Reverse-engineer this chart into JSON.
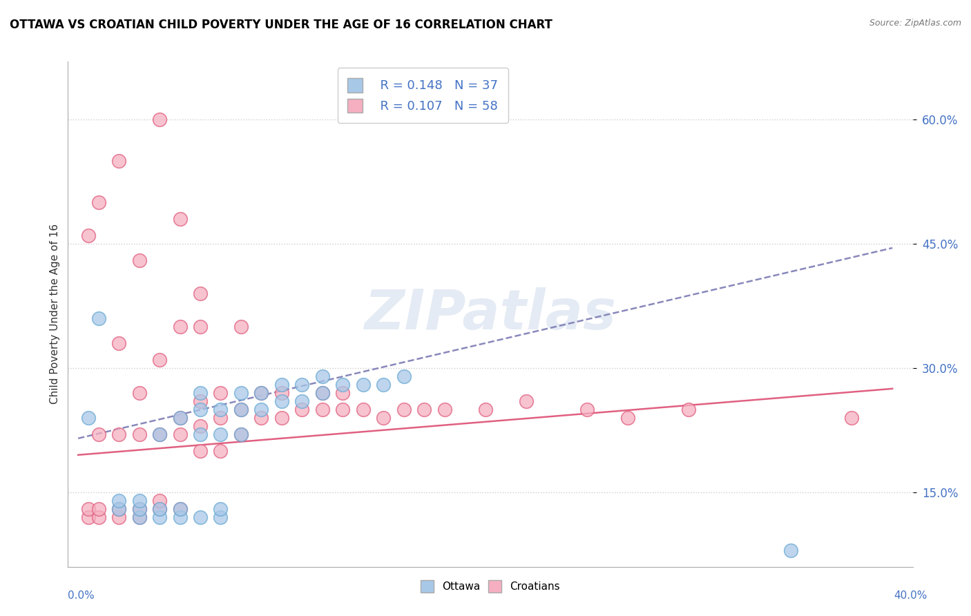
{
  "title": "OTTAWA VS CROATIAN CHILD POVERTY UNDER THE AGE OF 16 CORRELATION CHART",
  "source": "Source: ZipAtlas.com",
  "ylabel": "Child Poverty Under the Age of 16",
  "y_ticks": [
    0.15,
    0.3,
    0.45,
    0.6
  ],
  "y_tick_labels": [
    "15.0%",
    "30.0%",
    "45.0%",
    "60.0%"
  ],
  "xlim": [
    -0.005,
    0.41
  ],
  "ylim": [
    0.06,
    0.67
  ],
  "legend_R1": "R = 0.148",
  "legend_N1": "N = 37",
  "legend_R2": "R = 0.107",
  "legend_N2": "N = 58",
  "ottawa_color": "#a8c8e8",
  "croatian_color": "#f5afc0",
  "ottawa_edge": "#6aaad4",
  "croatian_edge": "#e06080",
  "trendline_ottawa_color": "#8888bb",
  "trendline_croatian_color": "#e06080",
  "watermark": "ZIPatlas",
  "ottawa_x": [
    0.005,
    0.01,
    0.02,
    0.02,
    0.03,
    0.03,
    0.03,
    0.04,
    0.04,
    0.04,
    0.05,
    0.05,
    0.05,
    0.06,
    0.06,
    0.06,
    0.06,
    0.07,
    0.07,
    0.07,
    0.07,
    0.08,
    0.08,
    0.08,
    0.09,
    0.09,
    0.1,
    0.1,
    0.11,
    0.11,
    0.12,
    0.12,
    0.13,
    0.14,
    0.15,
    0.16,
    0.35
  ],
  "ottawa_y": [
    0.24,
    0.36,
    0.13,
    0.14,
    0.12,
    0.13,
    0.14,
    0.12,
    0.13,
    0.22,
    0.12,
    0.13,
    0.24,
    0.12,
    0.22,
    0.25,
    0.27,
    0.12,
    0.13,
    0.22,
    0.25,
    0.22,
    0.25,
    0.27,
    0.25,
    0.27,
    0.26,
    0.28,
    0.26,
    0.28,
    0.27,
    0.29,
    0.28,
    0.28,
    0.28,
    0.29,
    0.08
  ],
  "croatian_x": [
    0.005,
    0.005,
    0.01,
    0.01,
    0.01,
    0.02,
    0.02,
    0.02,
    0.02,
    0.03,
    0.03,
    0.03,
    0.03,
    0.04,
    0.04,
    0.04,
    0.04,
    0.05,
    0.05,
    0.05,
    0.05,
    0.06,
    0.06,
    0.06,
    0.06,
    0.07,
    0.07,
    0.07,
    0.08,
    0.08,
    0.08,
    0.09,
    0.09,
    0.1,
    0.1,
    0.11,
    0.12,
    0.12,
    0.13,
    0.13,
    0.14,
    0.15,
    0.16,
    0.17,
    0.18,
    0.2,
    0.22,
    0.25,
    0.27,
    0.3,
    0.005,
    0.01,
    0.02,
    0.03,
    0.04,
    0.05,
    0.06,
    0.38
  ],
  "croatian_y": [
    0.12,
    0.13,
    0.12,
    0.13,
    0.22,
    0.12,
    0.13,
    0.22,
    0.33,
    0.12,
    0.13,
    0.22,
    0.27,
    0.13,
    0.14,
    0.22,
    0.31,
    0.22,
    0.24,
    0.13,
    0.35,
    0.2,
    0.23,
    0.26,
    0.35,
    0.2,
    0.24,
    0.27,
    0.22,
    0.25,
    0.35,
    0.24,
    0.27,
    0.24,
    0.27,
    0.25,
    0.25,
    0.27,
    0.25,
    0.27,
    0.25,
    0.24,
    0.25,
    0.25,
    0.25,
    0.25,
    0.26,
    0.25,
    0.24,
    0.25,
    0.46,
    0.5,
    0.55,
    0.43,
    0.6,
    0.48,
    0.39,
    0.24
  ],
  "trendline_ottawa_x0": 0.0,
  "trendline_ottawa_y0": 0.215,
  "trendline_ottawa_x1": 0.4,
  "trendline_ottawa_y1": 0.445,
  "trendline_croatian_x0": 0.0,
  "trendline_croatian_y0": 0.195,
  "trendline_croatian_x1": 0.4,
  "trendline_croatian_y1": 0.275
}
